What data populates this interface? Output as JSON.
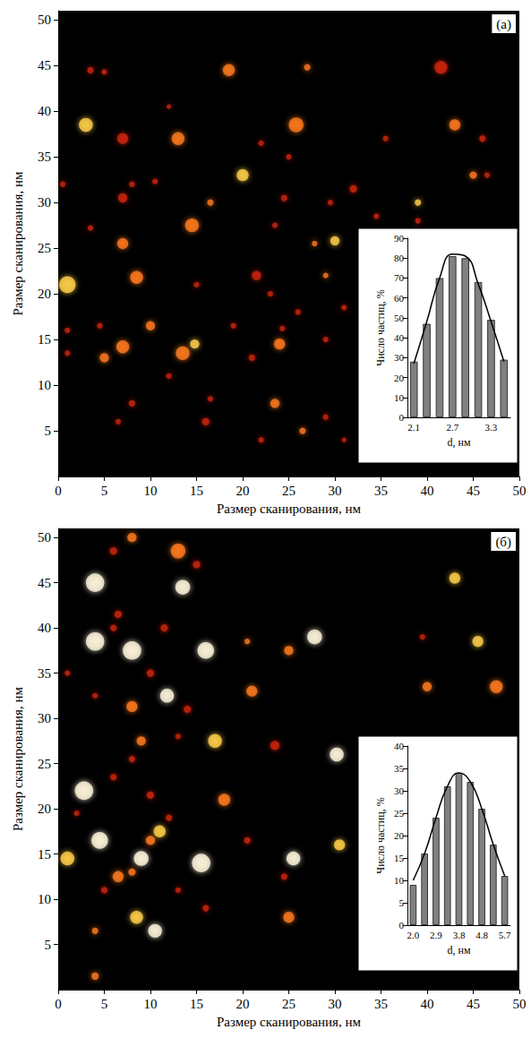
{
  "chart_data": [
    {
      "type": "scatter",
      "title": "(а)",
      "x_label": "Размер сканирования, нм",
      "y_label": "Размер сканирования, нм",
      "xlim": [
        0,
        50
      ],
      "ylim": [
        0,
        51
      ],
      "xticks": [
        0,
        5,
        10,
        15,
        20,
        25,
        30,
        35,
        40,
        45,
        50
      ],
      "yticks": [
        5,
        10,
        15,
        20,
        25,
        30,
        35,
        40,
        45,
        50
      ],
      "points": [
        [
          18.5,
          44.5,
          1.3,
          "#ff7a1e"
        ],
        [
          3.5,
          44.5,
          0.7,
          "#d0240e"
        ],
        [
          5,
          44.3,
          0.6,
          "#d0240e"
        ],
        [
          41.5,
          44.8,
          1.4,
          "#d0240e"
        ],
        [
          27,
          44.8,
          0.7,
          "#ff7a1e"
        ],
        [
          3,
          38.5,
          1.5,
          "#ffcf4a"
        ],
        [
          7,
          37,
          1.2,
          "#d0240e"
        ],
        [
          13,
          37,
          1.4,
          "#ff7a1e"
        ],
        [
          25.8,
          38.5,
          1.6,
          "#ff7a1e"
        ],
        [
          43,
          38.5,
          1.2,
          "#ff7a1e"
        ],
        [
          12,
          40.5,
          0.5,
          "#d0240e"
        ],
        [
          35.5,
          37,
          0.6,
          "#d0240e"
        ],
        [
          46,
          37,
          0.7,
          "#d0240e"
        ],
        [
          20,
          33,
          1.3,
          "#ffcf4a"
        ],
        [
          25,
          35,
          0.6,
          "#d0240e"
        ],
        [
          22,
          36.5,
          0.6,
          "#d0240e"
        ],
        [
          39,
          30,
          0.7,
          "#ffcf4a"
        ],
        [
          45,
          33,
          0.8,
          "#ff7a1e"
        ],
        [
          46.5,
          33,
          0.6,
          "#d0240e"
        ],
        [
          0.5,
          32,
          0.6,
          "#d0240e"
        ],
        [
          8,
          32,
          0.6,
          "#d0240e"
        ],
        [
          10.5,
          32.3,
          0.6,
          "#d0240e"
        ],
        [
          7,
          30.5,
          1.0,
          "#d0240e"
        ],
        [
          16.5,
          30,
          0.7,
          "#ff7a1e"
        ],
        [
          24.5,
          30.5,
          0.7,
          "#d0240e"
        ],
        [
          32,
          31.5,
          0.8,
          "#d0240e"
        ],
        [
          29.5,
          30,
          0.6,
          "#d0240e"
        ],
        [
          14.5,
          27.5,
          1.5,
          "#ff7a1e"
        ],
        [
          23.5,
          27.5,
          0.6,
          "#d0240e"
        ],
        [
          34.5,
          28.5,
          0.6,
          "#d0240e"
        ],
        [
          39,
          28,
          0.6,
          "#d0240e"
        ],
        [
          3.5,
          27.2,
          0.6,
          "#d0240e"
        ],
        [
          7,
          25.5,
          1.2,
          "#ff7a1e"
        ],
        [
          27.8,
          25.5,
          0.6,
          "#ff7a1e"
        ],
        [
          30,
          25.8,
          1.0,
          "#ffcf4a"
        ],
        [
          1,
          21,
          1.8,
          "#ffcf4a"
        ],
        [
          8.5,
          21.8,
          1.4,
          "#ff7a1e"
        ],
        [
          21.5,
          22,
          1.0,
          "#d0240e"
        ],
        [
          15,
          21,
          0.6,
          "#d0240e"
        ],
        [
          29,
          22,
          0.6,
          "#ff7a1e"
        ],
        [
          23,
          20,
          0.6,
          "#d0240e"
        ],
        [
          10,
          16.5,
          1.0,
          "#ff7a1e"
        ],
        [
          4.5,
          16.5,
          0.6,
          "#d0240e"
        ],
        [
          1,
          16,
          0.6,
          "#d0240e"
        ],
        [
          7,
          14.2,
          1.4,
          "#ff7a1e"
        ],
        [
          5,
          13,
          1.0,
          "#ff7a1e"
        ],
        [
          13.5,
          13.5,
          1.5,
          "#ff7a1e"
        ],
        [
          14.8,
          14.5,
          1.0,
          "#ffcf4a"
        ],
        [
          21,
          13,
          0.7,
          "#d0240e"
        ],
        [
          24,
          14.5,
          1.2,
          "#ff7a1e"
        ],
        [
          24.3,
          16.2,
          0.6,
          "#d0240e"
        ],
        [
          29,
          15,
          0.6,
          "#d0240e"
        ],
        [
          26,
          18,
          0.6,
          "#d0240e"
        ],
        [
          31,
          18.5,
          0.6,
          "#d0240e"
        ],
        [
          19,
          16.5,
          0.6,
          "#d0240e"
        ],
        [
          1,
          13.5,
          0.6,
          "#d0240e"
        ],
        [
          12,
          11,
          0.6,
          "#d0240e"
        ],
        [
          8,
          8,
          0.7,
          "#d0240e"
        ],
        [
          23.5,
          8,
          1.0,
          "#ff7a1e"
        ],
        [
          16.5,
          8.5,
          0.6,
          "#d0240e"
        ],
        [
          16,
          6,
          0.8,
          "#d0240e"
        ],
        [
          6.5,
          6,
          0.6,
          "#d0240e"
        ],
        [
          26.5,
          5,
          0.7,
          "#ff7a1e"
        ],
        [
          29,
          6.5,
          0.6,
          "#d0240e"
        ],
        [
          22,
          4,
          0.6,
          "#d0240e"
        ],
        [
          31,
          4,
          0.5,
          "#d0240e"
        ]
      ],
      "inset": {
        "type": "bar",
        "x_label": "d, нм",
        "y_label": "Число частиц, %",
        "categories": [
          "2.1",
          null,
          null,
          "2.7",
          null,
          null,
          "3.3",
          null
        ],
        "ylim": [
          0,
          90
        ],
        "yticks": [
          0,
          10,
          20,
          30,
          40,
          50,
          60,
          70,
          80,
          90
        ],
        "series": [
          {
            "type": "bar",
            "color": "#808080",
            "values": [
              28,
              47,
              70,
              81,
              80,
              68,
              49,
              29
            ]
          },
          {
            "type": "line",
            "color": "#000000",
            "values": [
              27,
              48,
              70,
              82,
              81,
              67,
              48,
              28
            ]
          }
        ]
      }
    },
    {
      "type": "scatter",
      "title": "(б)",
      "x_label": "Размер сканирования, нм",
      "y_label": "Размер сканирования, нм",
      "xlim": [
        0,
        50
      ],
      "ylim": [
        0,
        51
      ],
      "xticks": [
        0,
        5,
        10,
        15,
        20,
        25,
        30,
        35,
        40,
        45,
        50
      ],
      "yticks": [
        5,
        10,
        15,
        20,
        25,
        30,
        35,
        40,
        45,
        50
      ],
      "points": [
        [
          8,
          50,
          1.0,
          "#ff7a1e"
        ],
        [
          13,
          48.5,
          1.6,
          "#ff7a1e"
        ],
        [
          6,
          48.5,
          0.8,
          "#d0240e"
        ],
        [
          15,
          47,
          0.8,
          "#d0240e"
        ],
        [
          4,
          45,
          2.0,
          "#fff6dc"
        ],
        [
          13.5,
          44.5,
          1.6,
          "#fff6dc"
        ],
        [
          43,
          45.5,
          1.2,
          "#ffcf4a"
        ],
        [
          6.5,
          41.5,
          0.8,
          "#d0240e"
        ],
        [
          6,
          40,
          0.7,
          "#d0240e"
        ],
        [
          11.5,
          40,
          0.8,
          "#d0240e"
        ],
        [
          4,
          38.5,
          2.0,
          "#fff6dc"
        ],
        [
          8,
          37.5,
          2.0,
          "#fff6dc"
        ],
        [
          16,
          37.5,
          1.8,
          "#fff6dc"
        ],
        [
          27.8,
          39,
          1.6,
          "#fff6dc"
        ],
        [
          20.5,
          38.5,
          0.6,
          "#ff7a1e"
        ],
        [
          25,
          37.5,
          1.0,
          "#ff7a1e"
        ],
        [
          45.5,
          38.5,
          1.2,
          "#ffcf4a"
        ],
        [
          39.5,
          39,
          0.6,
          "#d0240e"
        ],
        [
          1,
          35,
          0.6,
          "#d0240e"
        ],
        [
          10,
          35,
          0.8,
          "#d0240e"
        ],
        [
          11.8,
          32.5,
          1.5,
          "#fff6dc"
        ],
        [
          14,
          31,
          0.8,
          "#d0240e"
        ],
        [
          4,
          32.5,
          0.6,
          "#d0240e"
        ],
        [
          8,
          31.3,
          1.2,
          "#ff7a1e"
        ],
        [
          21,
          33,
          1.2,
          "#ff7a1e"
        ],
        [
          40,
          33.5,
          1.0,
          "#ff7a1e"
        ],
        [
          47.5,
          33.5,
          1.4,
          "#ff7a1e"
        ],
        [
          9,
          27.5,
          1.0,
          "#ff7a1e"
        ],
        [
          17,
          27.5,
          1.5,
          "#ffcf4a"
        ],
        [
          13,
          28,
          0.6,
          "#d0240e"
        ],
        [
          30.2,
          26,
          1.5,
          "#fff6dc"
        ],
        [
          23.5,
          27,
          1.0,
          "#d0240e"
        ],
        [
          8,
          25.5,
          0.7,
          "#d0240e"
        ],
        [
          2.8,
          22,
          2.0,
          "#fff6dc"
        ],
        [
          6,
          23.5,
          0.7,
          "#d0240e"
        ],
        [
          10,
          21.5,
          0.8,
          "#d0240e"
        ],
        [
          18,
          21,
          1.3,
          "#ff7a1e"
        ],
        [
          11,
          17.5,
          1.3,
          "#ffcf4a"
        ],
        [
          10,
          16.5,
          1.0,
          "#ff7a1e"
        ],
        [
          4.5,
          16.5,
          1.8,
          "#fff6dc"
        ],
        [
          1,
          14.5,
          1.5,
          "#ffcf4a"
        ],
        [
          9,
          14.5,
          1.6,
          "#fff6dc"
        ],
        [
          15.5,
          14,
          2.0,
          "#fff6dc"
        ],
        [
          6.5,
          12.5,
          1.2,
          "#ff7a1e"
        ],
        [
          8,
          13,
          0.8,
          "#ff7a1e"
        ],
        [
          5,
          11,
          0.7,
          "#d0240e"
        ],
        [
          13,
          11,
          0.6,
          "#d0240e"
        ],
        [
          20.5,
          16.5,
          0.7,
          "#d0240e"
        ],
        [
          25.5,
          14.5,
          1.5,
          "#fff6dc"
        ],
        [
          24.5,
          12.5,
          0.7,
          "#d0240e"
        ],
        [
          25,
          8,
          1.2,
          "#ff7a1e"
        ],
        [
          16,
          9,
          0.7,
          "#d0240e"
        ],
        [
          8.5,
          8,
          1.4,
          "#ffcf4a"
        ],
        [
          10.5,
          6.5,
          1.5,
          "#fff6dc"
        ],
        [
          4,
          6.5,
          0.7,
          "#ff7a1e"
        ],
        [
          4,
          1.5,
          0.8,
          "#ff7a1e"
        ],
        [
          30.5,
          16,
          1.2,
          "#ffcf4a"
        ],
        [
          12,
          19,
          0.7,
          "#d0240e"
        ],
        [
          2,
          19.5,
          0.6,
          "#d0240e"
        ]
      ],
      "inset": {
        "type": "bar",
        "x_label": "d, нм",
        "y_label": "Число частиц, %",
        "categories": [
          "2.0",
          null,
          "2.9",
          null,
          "3.8",
          null,
          "4.8",
          null,
          "5.7"
        ],
        "ylim": [
          0,
          40
        ],
        "yticks": [
          0,
          5,
          10,
          15,
          20,
          25,
          30,
          35,
          40
        ],
        "series": [
          {
            "type": "bar",
            "color": "#808080",
            "values": [
              9,
              16,
              24,
              31,
              34,
              32,
              26,
              18,
              11
            ]
          },
          {
            "type": "line",
            "color": "#000000",
            "values": [
              10,
              16,
              24,
              31,
              34,
              32,
              26,
              18,
              11
            ]
          }
        ]
      }
    }
  ]
}
